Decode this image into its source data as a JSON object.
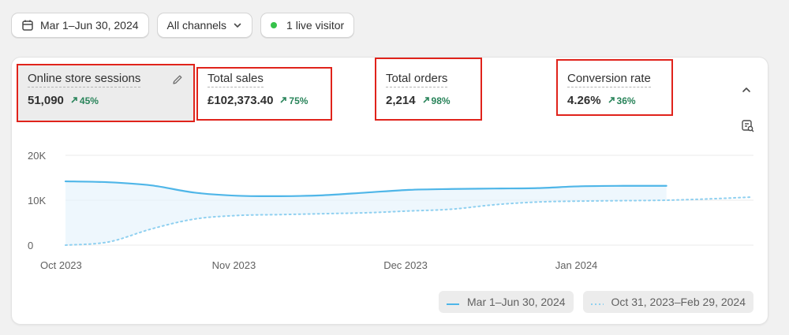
{
  "filters": {
    "date_range": "Mar 1–Jun 30, 2024",
    "channels": "All channels",
    "live_visitor": "1 live visitor"
  },
  "metrics": [
    {
      "label": "Online store sessions",
      "value": "51,090",
      "delta": "45%"
    },
    {
      "label": "Total sales",
      "value": "£102,373.40",
      "delta": "75%"
    },
    {
      "label": "Total orders",
      "value": "2,214",
      "delta": "98%"
    },
    {
      "label": "Conversion rate",
      "value": "4.26%",
      "delta": "36%"
    }
  ],
  "colors": {
    "primary_line": "#4fb6e8",
    "compare_line": "#8fd0f0",
    "positive": "#29845a",
    "highlight": "#e0231b"
  },
  "chart_data": {
    "type": "line",
    "y_ticks": [
      "20K",
      "10K",
      "0"
    ],
    "x_ticks": [
      "Oct 2023",
      "Nov 2023",
      "Dec 2023",
      "Jan 2024"
    ],
    "ylim": [
      0,
      20000
    ],
    "x": [
      0,
      1,
      2,
      3,
      4,
      5,
      6,
      7,
      8,
      9,
      10,
      11,
      12,
      13,
      14,
      15,
      16
    ],
    "series": [
      {
        "name": "Mar 1–Jun 30, 2024",
        "style": "solid",
        "values": [
          14200,
          14000,
          13300,
          11700,
          11000,
          10900,
          11100,
          11700,
          12300,
          12500,
          12600,
          12700,
          13100,
          13200,
          13200,
          null,
          null
        ]
      },
      {
        "name": "Oct 31, 2023–Feb 29, 2024",
        "style": "dotted",
        "values": [
          0,
          700,
          3600,
          5800,
          6600,
          6800,
          7000,
          7200,
          7600,
          8000,
          9000,
          9600,
          9800,
          9900,
          10000,
          10300,
          10700
        ]
      }
    ]
  }
}
